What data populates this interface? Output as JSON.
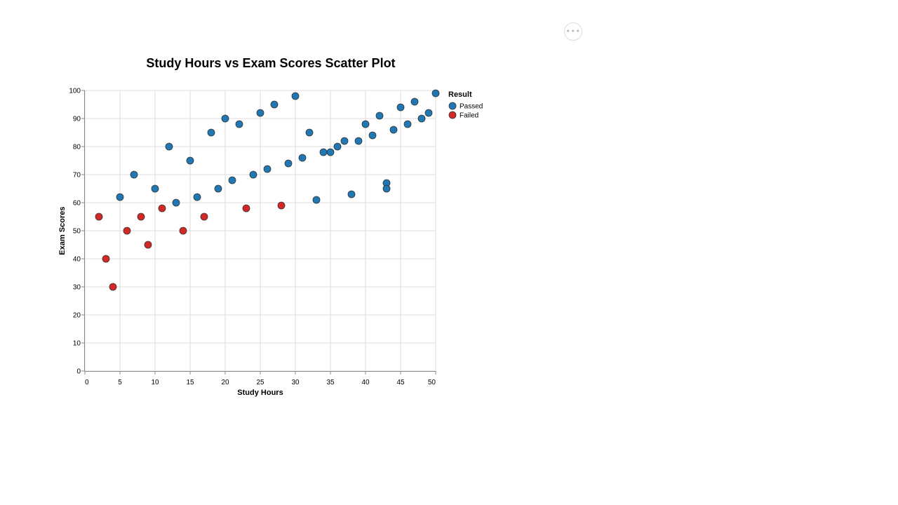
{
  "actions_menu": {
    "icon": "ellipsis-icon",
    "label": "•••"
  },
  "chart_data": {
    "type": "scatter",
    "title": "Study Hours vs Exam Scores Scatter Plot",
    "xlabel": "Study Hours",
    "ylabel": "Exam Scores",
    "xlim": [
      0,
      50
    ],
    "ylim": [
      0,
      100
    ],
    "x_ticks": [
      0,
      5,
      10,
      15,
      20,
      25,
      30,
      35,
      40,
      45,
      50
    ],
    "y_ticks": [
      0,
      10,
      20,
      30,
      40,
      50,
      60,
      70,
      80,
      90,
      100
    ],
    "grid": true,
    "legend": {
      "title": "Result",
      "placement": "right",
      "entries": [
        {
          "name": "Passed",
          "color": "#1f77b4"
        },
        {
          "name": "Failed",
          "color": "#d62728"
        }
      ]
    },
    "series": [
      {
        "name": "Passed",
        "color": "#1f77b4",
        "points": [
          {
            "x": 5,
            "y": 62
          },
          {
            "x": 7,
            "y": 70
          },
          {
            "x": 10,
            "y": 65
          },
          {
            "x": 12,
            "y": 80
          },
          {
            "x": 13,
            "y": 60
          },
          {
            "x": 15,
            "y": 75
          },
          {
            "x": 16,
            "y": 62
          },
          {
            "x": 18,
            "y": 85
          },
          {
            "x": 19,
            "y": 65
          },
          {
            "x": 20,
            "y": 90
          },
          {
            "x": 21,
            "y": 68
          },
          {
            "x": 22,
            "y": 88
          },
          {
            "x": 24,
            "y": 70
          },
          {
            "x": 25,
            "y": 92
          },
          {
            "x": 26,
            "y": 72
          },
          {
            "x": 27,
            "y": 95
          },
          {
            "x": 29,
            "y": 74
          },
          {
            "x": 30,
            "y": 98
          },
          {
            "x": 31,
            "y": 76
          },
          {
            "x": 32,
            "y": 85
          },
          {
            "x": 33,
            "y": 61
          },
          {
            "x": 34,
            "y": 78
          },
          {
            "x": 35,
            "y": 78
          },
          {
            "x": 36,
            "y": 80
          },
          {
            "x": 37,
            "y": 82
          },
          {
            "x": 38,
            "y": 63
          },
          {
            "x": 39,
            "y": 82
          },
          {
            "x": 40,
            "y": 88
          },
          {
            "x": 41,
            "y": 84
          },
          {
            "x": 42,
            "y": 91
          },
          {
            "x": 43,
            "y": 67
          },
          {
            "x": 43,
            "y": 65
          },
          {
            "x": 44,
            "y": 86
          },
          {
            "x": 45,
            "y": 94
          },
          {
            "x": 46,
            "y": 88
          },
          {
            "x": 47,
            "y": 96
          },
          {
            "x": 48,
            "y": 90
          },
          {
            "x": 49,
            "y": 92
          },
          {
            "x": 50,
            "y": 99
          }
        ]
      },
      {
        "name": "Failed",
        "color": "#d62728",
        "points": [
          {
            "x": 2,
            "y": 55
          },
          {
            "x": 3,
            "y": 40
          },
          {
            "x": 4,
            "y": 30
          },
          {
            "x": 6,
            "y": 50
          },
          {
            "x": 8,
            "y": 55
          },
          {
            "x": 9,
            "y": 45
          },
          {
            "x": 11,
            "y": 58
          },
          {
            "x": 14,
            "y": 50
          },
          {
            "x": 17,
            "y": 55
          },
          {
            "x": 23,
            "y": 58
          },
          {
            "x": 28,
            "y": 59
          }
        ]
      }
    ]
  }
}
